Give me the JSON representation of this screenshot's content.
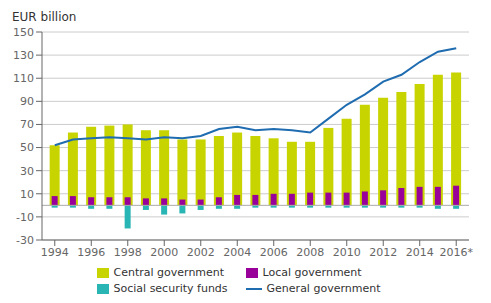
{
  "chart_data": {
    "type": "bar",
    "ylabel": "EUR billion",
    "x": [
      1994,
      1995,
      1996,
      1997,
      1998,
      1999,
      2000,
      2001,
      2002,
      2003,
      2004,
      2005,
      2006,
      2007,
      2008,
      2009,
      2010,
      2011,
      2012,
      2013,
      2014,
      2015,
      2016
    ],
    "series": [
      {
        "name": "Central government",
        "type": "bar",
        "color": "#c8d400",
        "values": [
          52,
          63,
          68,
          69,
          70,
          65,
          65,
          57,
          57,
          60,
          63,
          60,
          58,
          55,
          55,
          67,
          75,
          87,
          93,
          98,
          105,
          113,
          115
        ]
      },
      {
        "name": "Local government",
        "type": "bar",
        "color": "#990099",
        "values": [
          8,
          8,
          7,
          7,
          7,
          6,
          6,
          5,
          5,
          7,
          9,
          9,
          10,
          10,
          11,
          11,
          11,
          12,
          13,
          15,
          16,
          16,
          17
        ]
      },
      {
        "name": "Social security funds",
        "type": "bar",
        "color": "#2ab5b5",
        "values": [
          -2,
          -2,
          -3,
          -3,
          -20,
          -4,
          -8,
          -7,
          -4,
          -3,
          -3,
          -2,
          -2,
          -2,
          -2,
          -2,
          -2,
          -2,
          -2,
          -2,
          -2,
          -3,
          -3
        ]
      },
      {
        "name": "General government",
        "type": "line",
        "color": "#1f6cb0",
        "values": [
          52,
          57,
          58,
          59,
          58,
          57,
          59,
          58,
          60,
          66,
          68,
          65,
          66,
          65,
          63,
          75,
          87,
          96,
          107,
          113,
          124,
          133,
          136
        ]
      }
    ],
    "xlim": [
      1993.3,
      2016.7
    ],
    "xticks": [
      1994,
      1996,
      1998,
      2000,
      2002,
      2004,
      2006,
      2008,
      2010,
      2012,
      2014,
      {
        "value": 2016,
        "label": "2016*"
      }
    ],
    "ylim": [
      -30,
      150
    ],
    "yticks": [
      -30,
      -10,
      10,
      30,
      50,
      70,
      90,
      110,
      130,
      150
    ],
    "grid": true,
    "legend": "bottom"
  }
}
